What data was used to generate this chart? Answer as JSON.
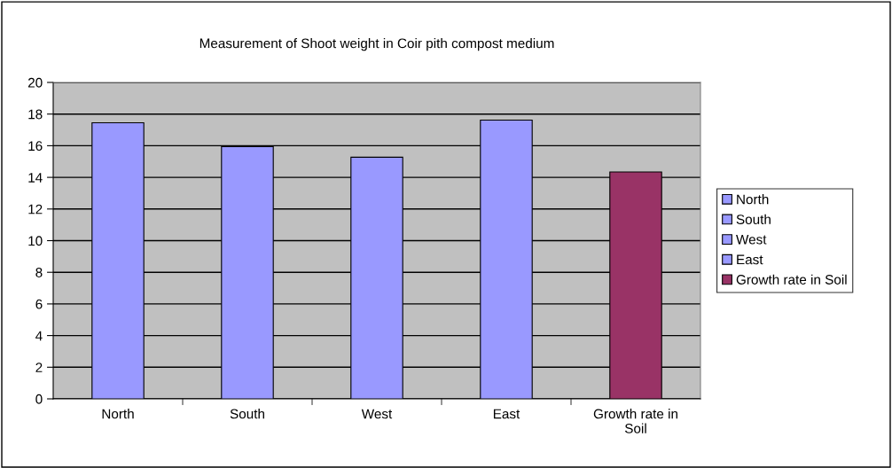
{
  "chart_data": {
    "type": "bar",
    "title": "Measurement of Shoot weight in Coir pith compost medium",
    "categories": [
      "North",
      "South",
      "West",
      "East",
      "Growth rate in Soil"
    ],
    "series": [
      {
        "name": "North",
        "color": "#9999ff",
        "values": [
          17.45,
          null,
          null,
          null,
          null
        ]
      },
      {
        "name": "South",
        "color": "#9999ff",
        "values": [
          null,
          15.94,
          null,
          null,
          null
        ]
      },
      {
        "name": "West",
        "color": "#9999ff",
        "values": [
          null,
          null,
          15.27,
          null,
          null
        ]
      },
      {
        "name": "East",
        "color": "#9999ff",
        "values": [
          null,
          null,
          null,
          17.62,
          null
        ]
      },
      {
        "name": "Growth rate in Soil",
        "color": "#993366",
        "values": [
          null,
          null,
          null,
          null,
          14.34
        ]
      }
    ],
    "ylim": [
      0,
      20
    ],
    "yticks": [
      0,
      2,
      4,
      6,
      8,
      10,
      12,
      14,
      16,
      18,
      20
    ],
    "grid": "y",
    "legend": "right"
  }
}
